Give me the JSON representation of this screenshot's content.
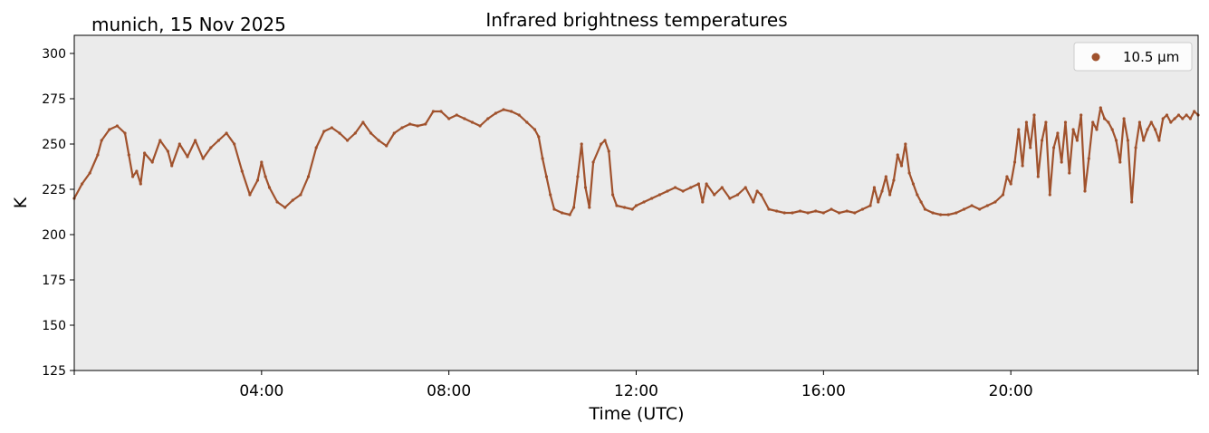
{
  "chart_data": {
    "type": "scatter",
    "title": "Infrared brightness temperatures",
    "subtitle": "munich, 15 Nov 2025",
    "xlabel": "Time (UTC)",
    "ylabel": "K",
    "xlim": [
      "00:00",
      "24:00"
    ],
    "ylim": [
      125,
      310
    ],
    "yticks": [
      125,
      150,
      175,
      200,
      225,
      250,
      275,
      300
    ],
    "xticks": [
      "04:00",
      "08:00",
      "12:00",
      "16:00",
      "20:00"
    ],
    "grid": false,
    "legend": {
      "position": "top-right",
      "entries": [
        "10.5 µm"
      ]
    },
    "colors": {
      "series": "#A0522D",
      "background": "#EBEBEB"
    },
    "series": [
      {
        "name": "10.5 µm",
        "points": [
          [
            "00:00",
            220
          ],
          [
            "00:10",
            228
          ],
          [
            "00:20",
            234
          ],
          [
            "00:30",
            244
          ],
          [
            "00:35",
            252
          ],
          [
            "00:45",
            258
          ],
          [
            "00:55",
            260
          ],
          [
            "01:05",
            256
          ],
          [
            "01:10",
            244
          ],
          [
            "01:15",
            232
          ],
          [
            "01:20",
            235
          ],
          [
            "01:25",
            228
          ],
          [
            "01:30",
            245
          ],
          [
            "01:40",
            240
          ],
          [
            "01:50",
            252
          ],
          [
            "02:00",
            246
          ],
          [
            "02:05",
            238
          ],
          [
            "02:15",
            250
          ],
          [
            "02:25",
            243
          ],
          [
            "02:35",
            252
          ],
          [
            "02:45",
            242
          ],
          [
            "02:55",
            248
          ],
          [
            "03:05",
            252
          ],
          [
            "03:15",
            256
          ],
          [
            "03:25",
            250
          ],
          [
            "03:35",
            235
          ],
          [
            "03:45",
            222
          ],
          [
            "03:55",
            230
          ],
          [
            "04:00",
            240
          ],
          [
            "04:05",
            232
          ],
          [
            "04:10",
            226
          ],
          [
            "04:20",
            218
          ],
          [
            "04:30",
            215
          ],
          [
            "04:40",
            219
          ],
          [
            "04:50",
            222
          ],
          [
            "05:00",
            232
          ],
          [
            "05:10",
            248
          ],
          [
            "05:20",
            257
          ],
          [
            "05:30",
            259
          ],
          [
            "05:40",
            256
          ],
          [
            "05:50",
            252
          ],
          [
            "06:00",
            256
          ],
          [
            "06:10",
            262
          ],
          [
            "06:20",
            256
          ],
          [
            "06:30",
            252
          ],
          [
            "06:40",
            249
          ],
          [
            "06:50",
            256
          ],
          [
            "07:00",
            259
          ],
          [
            "07:10",
            261
          ],
          [
            "07:20",
            260
          ],
          [
            "07:30",
            261
          ],
          [
            "07:40",
            268
          ],
          [
            "07:50",
            268
          ],
          [
            "08:00",
            264
          ],
          [
            "08:10",
            266
          ],
          [
            "08:20",
            264
          ],
          [
            "08:30",
            262
          ],
          [
            "08:40",
            260
          ],
          [
            "08:50",
            264
          ],
          [
            "09:00",
            267
          ],
          [
            "09:10",
            269
          ],
          [
            "09:20",
            268
          ],
          [
            "09:30",
            266
          ],
          [
            "09:40",
            262
          ],
          [
            "09:50",
            258
          ],
          [
            "09:55",
            254
          ],
          [
            "10:00",
            242
          ],
          [
            "10:05",
            232
          ],
          [
            "10:10",
            222
          ],
          [
            "10:15",
            214
          ],
          [
            "10:25",
            212
          ],
          [
            "10:35",
            211
          ],
          [
            "10:40",
            215
          ],
          [
            "10:45",
            232
          ],
          [
            "10:50",
            250
          ],
          [
            "10:55",
            226
          ],
          [
            "11:00",
            215
          ],
          [
            "11:05",
            240
          ],
          [
            "11:15",
            250
          ],
          [
            "11:20",
            252
          ],
          [
            "11:25",
            246
          ],
          [
            "11:30",
            222
          ],
          [
            "11:35",
            216
          ],
          [
            "11:45",
            215
          ],
          [
            "11:55",
            214
          ],
          [
            "12:00",
            216
          ],
          [
            "12:10",
            218
          ],
          [
            "12:20",
            220
          ],
          [
            "12:30",
            222
          ],
          [
            "12:40",
            224
          ],
          [
            "12:50",
            226
          ],
          [
            "13:00",
            224
          ],
          [
            "13:10",
            226
          ],
          [
            "13:20",
            228
          ],
          [
            "13:25",
            218
          ],
          [
            "13:30",
            228
          ],
          [
            "13:40",
            222
          ],
          [
            "13:50",
            226
          ],
          [
            "14:00",
            220
          ],
          [
            "14:10",
            222
          ],
          [
            "14:20",
            226
          ],
          [
            "14:30",
            218
          ],
          [
            "14:35",
            224
          ],
          [
            "14:40",
            222
          ],
          [
            "14:50",
            214
          ],
          [
            "15:00",
            213
          ],
          [
            "15:10",
            212
          ],
          [
            "15:20",
            212
          ],
          [
            "15:30",
            213
          ],
          [
            "15:40",
            212
          ],
          [
            "15:50",
            213
          ],
          [
            "16:00",
            212
          ],
          [
            "16:10",
            214
          ],
          [
            "16:20",
            212
          ],
          [
            "16:30",
            213
          ],
          [
            "16:40",
            212
          ],
          [
            "16:50",
            214
          ],
          [
            "17:00",
            216
          ],
          [
            "17:05",
            226
          ],
          [
            "17:10",
            218
          ],
          [
            "17:15",
            224
          ],
          [
            "17:20",
            232
          ],
          [
            "17:25",
            222
          ],
          [
            "17:30",
            230
          ],
          [
            "17:35",
            244
          ],
          [
            "17:40",
            238
          ],
          [
            "17:45",
            250
          ],
          [
            "17:50",
            234
          ],
          [
            "17:55",
            228
          ],
          [
            "18:00",
            222
          ],
          [
            "18:05",
            218
          ],
          [
            "18:10",
            214
          ],
          [
            "18:20",
            212
          ],
          [
            "18:30",
            211
          ],
          [
            "18:40",
            211
          ],
          [
            "18:50",
            212
          ],
          [
            "19:00",
            214
          ],
          [
            "19:10",
            216
          ],
          [
            "19:20",
            214
          ],
          [
            "19:30",
            216
          ],
          [
            "19:40",
            218
          ],
          [
            "19:50",
            222
          ],
          [
            "19:55",
            232
          ],
          [
            "20:00",
            228
          ],
          [
            "20:05",
            240
          ],
          [
            "20:10",
            258
          ],
          [
            "20:15",
            238
          ],
          [
            "20:20",
            262
          ],
          [
            "20:25",
            248
          ],
          [
            "20:30",
            266
          ],
          [
            "20:35",
            232
          ],
          [
            "20:40",
            252
          ],
          [
            "20:45",
            262
          ],
          [
            "20:50",
            222
          ],
          [
            "20:55",
            248
          ],
          [
            "21:00",
            256
          ],
          [
            "21:05",
            240
          ],
          [
            "21:10",
            262
          ],
          [
            "21:15",
            234
          ],
          [
            "21:20",
            258
          ],
          [
            "21:25",
            252
          ],
          [
            "21:30",
            266
          ],
          [
            "21:35",
            224
          ],
          [
            "21:40",
            242
          ],
          [
            "21:45",
            262
          ],
          [
            "21:50",
            258
          ],
          [
            "21:55",
            270
          ],
          [
            "22:00",
            264
          ],
          [
            "22:05",
            262
          ],
          [
            "22:10",
            258
          ],
          [
            "22:15",
            252
          ],
          [
            "22:20",
            240
          ],
          [
            "22:25",
            264
          ],
          [
            "22:30",
            252
          ],
          [
            "22:35",
            218
          ],
          [
            "22:40",
            248
          ],
          [
            "22:45",
            262
          ],
          [
            "22:50",
            252
          ],
          [
            "22:55",
            258
          ],
          [
            "23:00",
            262
          ],
          [
            "23:05",
            258
          ],
          [
            "23:10",
            252
          ],
          [
            "23:15",
            264
          ],
          [
            "23:20",
            266
          ],
          [
            "23:25",
            262
          ],
          [
            "23:30",
            264
          ],
          [
            "23:35",
            266
          ],
          [
            "23:40",
            264
          ],
          [
            "23:45",
            266
          ],
          [
            "23:50",
            264
          ],
          [
            "23:55",
            268
          ],
          [
            "24:00",
            266
          ]
        ]
      }
    ]
  }
}
